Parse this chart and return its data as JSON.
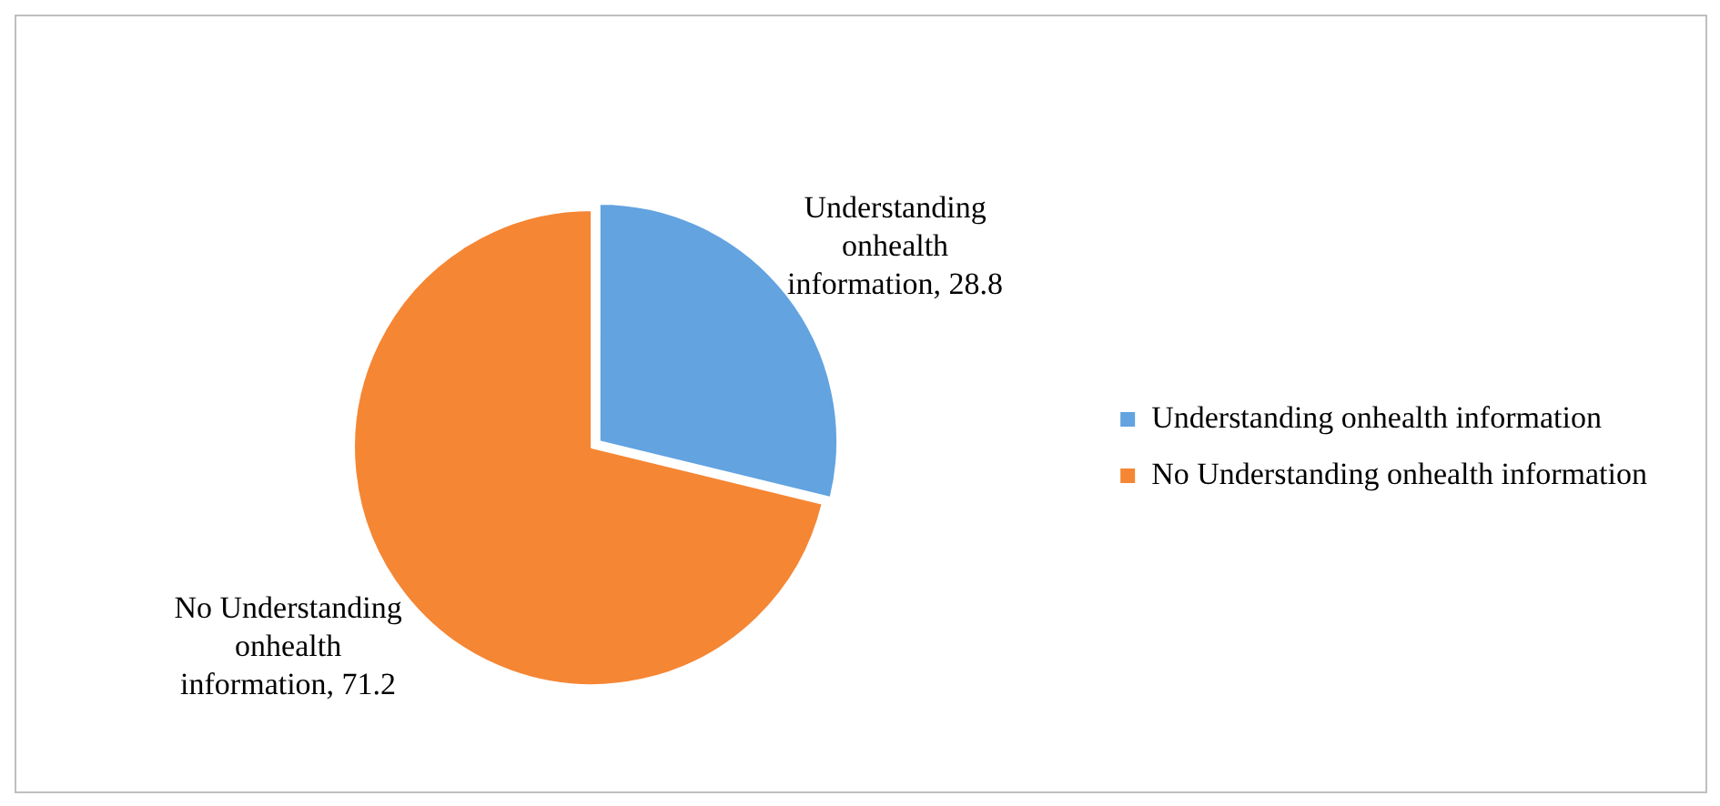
{
  "chart_data": {
    "type": "pie",
    "categories": [
      "Understanding onhealth information",
      "No Understanding onhealth information"
    ],
    "values": [
      28.8,
      71.2
    ],
    "colors": [
      "#62a3e0",
      "#f58634"
    ],
    "value_labels": [
      "Understanding onhealth information, 28.8",
      "No Understanding onhealth information, 71.2"
    ],
    "legend": "right"
  }
}
